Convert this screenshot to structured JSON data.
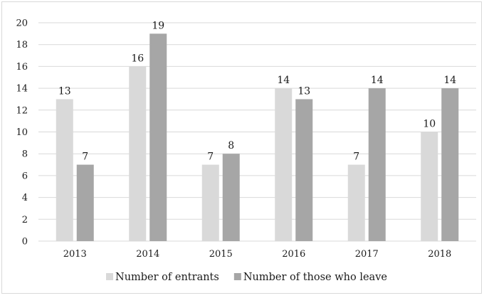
{
  "chart_data": {
    "type": "bar",
    "title": "",
    "xlabel": "",
    "ylabel": "",
    "categories": [
      "2013",
      "2014",
      "2015",
      "2016",
      "2017",
      "2018"
    ],
    "series": [
      {
        "name": "Number of entrants",
        "values": [
          13,
          16,
          7,
          14,
          7,
          10
        ],
        "color": "#d9d9d9"
      },
      {
        "name": "Number of those who leave",
        "values": [
          7,
          19,
          8,
          13,
          14,
          14
        ],
        "color": "#a6a6a6"
      }
    ],
    "ylim": [
      0,
      20
    ],
    "yticks": [
      "0",
      "2",
      "4",
      "6",
      "8",
      "10",
      "12",
      "14",
      "16",
      "18",
      "20"
    ],
    "grid": true,
    "gridColor": "#d9d9d9",
    "data_labels": true,
    "legend": "bottom"
  }
}
